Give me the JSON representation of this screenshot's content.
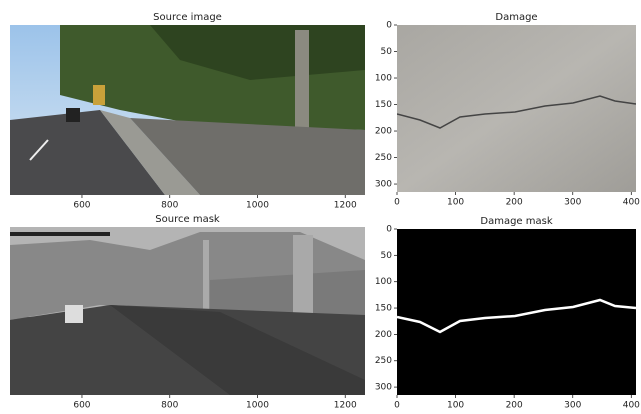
{
  "chart_data": [
    {
      "type": "image",
      "title": "Source image",
      "xlim": [
        436,
        1245
      ],
      "xticks": [
        600,
        800,
        1000,
        1200
      ]
    },
    {
      "type": "image",
      "title": "Damage",
      "xlim": [
        0,
        408
      ],
      "xticks": [
        0,
        100,
        200,
        300,
        400
      ],
      "ylim": [
        315,
        0
      ],
      "yticks": [
        0,
        50,
        100,
        150,
        200,
        250,
        300
      ]
    },
    {
      "type": "image",
      "title": "Source mask",
      "xlim": [
        436,
        1245
      ],
      "xticks": [
        600,
        800,
        1000,
        1200
      ]
    },
    {
      "type": "image",
      "title": "Damage mask",
      "xlim": [
        0,
        408
      ],
      "xticks": [
        0,
        100,
        200,
        300,
        400
      ],
      "ylim": [
        315,
        0
      ],
      "yticks": [
        0,
        50,
        100,
        150,
        200,
        250,
        300
      ]
    }
  ]
}
